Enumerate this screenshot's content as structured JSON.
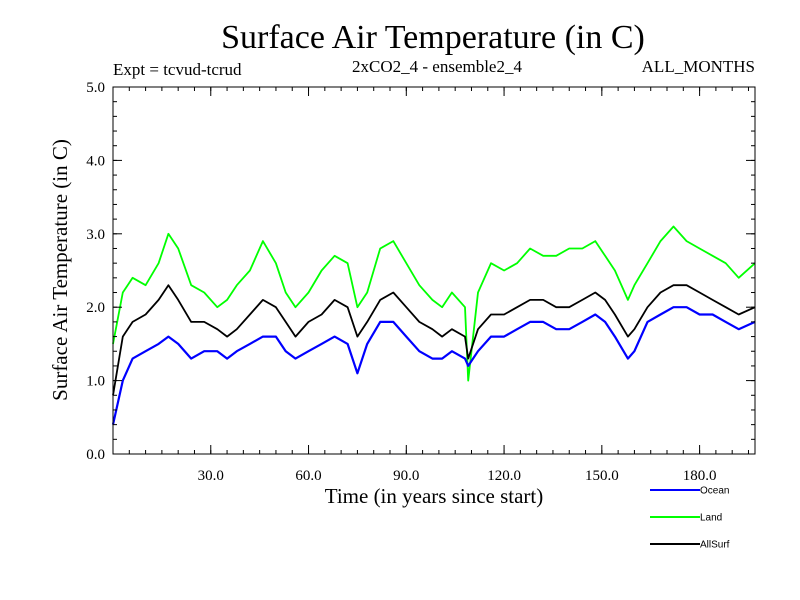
{
  "chart_data": {
    "type": "line",
    "title": "Surface Air Temperature (in C)",
    "subtitle_left": "Expt = tcvud-tcrud",
    "subtitle_center": "2xCO2_4 - ensemble2_4",
    "subtitle_right": "ALL_MONTHS",
    "xlabel": "Time (in years since start)",
    "ylabel": "Surface Air Temperature (in C)",
    "xlim": [
      0,
      197
    ],
    "ylim": [
      0,
      5
    ],
    "x_ticks": [
      30,
      60,
      90,
      120,
      150,
      180
    ],
    "x_tick_labels": [
      "30.0",
      "60.0",
      "90.0",
      "120.0",
      "150.0",
      "180.0"
    ],
    "y_ticks": [
      0,
      1,
      2,
      3,
      4,
      5
    ],
    "y_tick_labels": [
      "0.0",
      "1.0",
      "2.0",
      "3.0",
      "4.0",
      "5.0"
    ],
    "grid": false,
    "legend_position": "bottom-right",
    "series": [
      {
        "name": "Land",
        "color": "#00ff00",
        "x": [
          0,
          3,
          6,
          10,
          14,
          17,
          20,
          24,
          28,
          32,
          35,
          38,
          42,
          46,
          50,
          53,
          56,
          60,
          64,
          68,
          72,
          75,
          78,
          82,
          86,
          90,
          94,
          98,
          101,
          104,
          108,
          109,
          112,
          116,
          120,
          124,
          128,
          132,
          136,
          140,
          144,
          148,
          151,
          154,
          158,
          160,
          164,
          168,
          172,
          176,
          180,
          184,
          188,
          192,
          197
        ],
        "values": [
          1.5,
          2.2,
          2.4,
          2.3,
          2.6,
          3.0,
          2.8,
          2.3,
          2.2,
          2.0,
          2.1,
          2.3,
          2.5,
          2.9,
          2.6,
          2.2,
          2.0,
          2.2,
          2.5,
          2.7,
          2.6,
          2.0,
          2.2,
          2.8,
          2.9,
          2.6,
          2.3,
          2.1,
          2.0,
          2.2,
          2.0,
          1.0,
          2.2,
          2.6,
          2.5,
          2.6,
          2.8,
          2.7,
          2.7,
          2.8,
          2.8,
          2.9,
          2.7,
          2.5,
          2.1,
          2.3,
          2.6,
          2.9,
          3.1,
          2.9,
          2.8,
          2.7,
          2.6,
          2.4,
          2.6
        ]
      },
      {
        "name": "AllSurf",
        "color": "#000000",
        "x": [
          0,
          3,
          6,
          10,
          14,
          17,
          20,
          24,
          28,
          32,
          35,
          38,
          42,
          46,
          50,
          53,
          56,
          60,
          64,
          68,
          72,
          75,
          78,
          82,
          86,
          90,
          94,
          98,
          101,
          104,
          108,
          109,
          112,
          116,
          120,
          124,
          128,
          132,
          136,
          140,
          144,
          148,
          151,
          154,
          158,
          160,
          164,
          168,
          172,
          176,
          180,
          184,
          188,
          192,
          197
        ],
        "values": [
          0.8,
          1.6,
          1.8,
          1.9,
          2.1,
          2.3,
          2.1,
          1.8,
          1.8,
          1.7,
          1.6,
          1.7,
          1.9,
          2.1,
          2.0,
          1.8,
          1.6,
          1.8,
          1.9,
          2.1,
          2.0,
          1.6,
          1.8,
          2.1,
          2.2,
          2.0,
          1.8,
          1.7,
          1.6,
          1.7,
          1.6,
          1.3,
          1.7,
          1.9,
          1.9,
          2.0,
          2.1,
          2.1,
          2.0,
          2.0,
          2.1,
          2.2,
          2.1,
          1.9,
          1.6,
          1.7,
          2.0,
          2.2,
          2.3,
          2.3,
          2.2,
          2.1,
          2.0,
          1.9,
          2.0
        ]
      },
      {
        "name": "Ocean",
        "color": "#0000ff",
        "x": [
          0,
          3,
          6,
          10,
          14,
          17,
          20,
          24,
          28,
          32,
          35,
          38,
          42,
          46,
          50,
          53,
          56,
          60,
          64,
          68,
          72,
          75,
          78,
          82,
          86,
          90,
          94,
          98,
          101,
          104,
          108,
          109,
          112,
          116,
          120,
          124,
          128,
          132,
          136,
          140,
          144,
          148,
          151,
          154,
          158,
          160,
          164,
          168,
          172,
          176,
          180,
          184,
          188,
          192,
          197
        ],
        "values": [
          0.4,
          1.0,
          1.3,
          1.4,
          1.5,
          1.6,
          1.5,
          1.3,
          1.4,
          1.4,
          1.3,
          1.4,
          1.5,
          1.6,
          1.6,
          1.4,
          1.3,
          1.4,
          1.5,
          1.6,
          1.5,
          1.1,
          1.5,
          1.8,
          1.8,
          1.6,
          1.4,
          1.3,
          1.3,
          1.4,
          1.3,
          1.2,
          1.4,
          1.6,
          1.6,
          1.7,
          1.8,
          1.8,
          1.7,
          1.7,
          1.8,
          1.9,
          1.8,
          1.6,
          1.3,
          1.4,
          1.8,
          1.9,
          2.0,
          2.0,
          1.9,
          1.9,
          1.8,
          1.7,
          1.8
        ]
      }
    ]
  }
}
